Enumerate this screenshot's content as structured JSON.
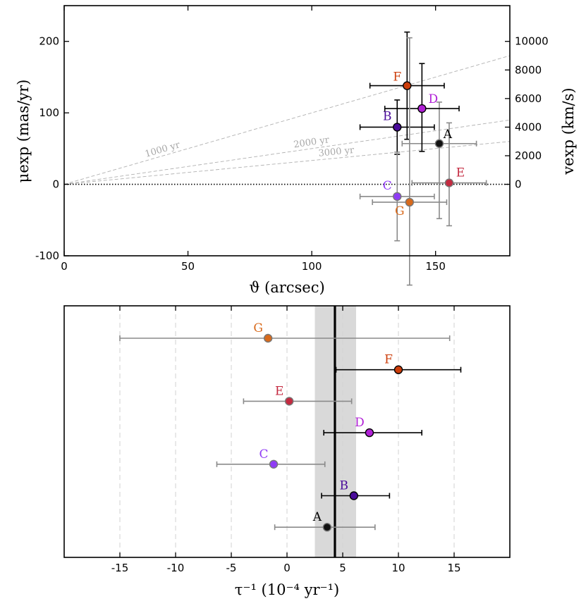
{
  "chart_data": [
    {
      "type": "scatter",
      "panel": "top",
      "xlabel": "ϑ (arcsec)",
      "ylabel": "μexp (mas/yr)",
      "ylabel_right": "vexp (km/s)",
      "xlim": [
        0,
        180
      ],
      "ylim": [
        -100,
        250
      ],
      "xticks": [
        0,
        50,
        100,
        150
      ],
      "yticks": [
        -100,
        0,
        100,
        200
      ],
      "right_axis": {
        "ticks": [
          0,
          2000,
          4000,
          6000,
          8000,
          10000
        ],
        "mas_per_yr_per_kms": 0.02
      },
      "zero_line": 0,
      "age_lines": [
        {
          "label": "1000 yr",
          "years": 1000
        },
        {
          "label": "2000 yr",
          "years": 2000
        },
        {
          "label": "3000 yr",
          "years": 3000
        }
      ],
      "series": [
        {
          "name": "A",
          "theta": 151.5,
          "theta_err_lo": 15,
          "theta_err_hi": 15,
          "mu": 57,
          "mu_err_lo": 105,
          "mu_err_hi": 58,
          "color": "#111111",
          "bar": "#8a8a8a"
        },
        {
          "name": "B",
          "theta": 134.5,
          "theta_err_lo": 15,
          "theta_err_hi": 15,
          "mu": 80,
          "mu_err_lo": 38,
          "mu_err_hi": 38,
          "color": "#4a0c9a",
          "bar": "#000000"
        },
        {
          "name": "C",
          "theta": 134.5,
          "theta_err_lo": 15,
          "theta_err_hi": 15,
          "mu": -17,
          "mu_err_lo": 62,
          "mu_err_hi": 62,
          "color": "#8f3cf5",
          "bar": "#8a8a8a"
        },
        {
          "name": "D",
          "theta": 144.5,
          "theta_err_lo": 15,
          "theta_err_hi": 15,
          "mu": 106,
          "mu_err_lo": 60,
          "mu_err_hi": 63,
          "color": "#b020d6",
          "bar": "#000000"
        },
        {
          "name": "E",
          "theta": 155.5,
          "theta_err_lo": 15,
          "theta_err_hi": 15,
          "mu": 2,
          "mu_err_lo": 60,
          "mu_err_hi": 84,
          "color": "#c42a40",
          "bar": "#8a8a8a"
        },
        {
          "name": "F",
          "theta": 138.5,
          "theta_err_lo": 15,
          "theta_err_hi": 15,
          "mu": 138,
          "mu_err_lo": 75,
          "mu_err_hi": 75,
          "color": "#cc3d0a",
          "bar": "#000000"
        },
        {
          "name": "G",
          "theta": 139.5,
          "theta_err_lo": 15,
          "theta_err_hi": 15,
          "mu": -25,
          "mu_err_lo": 116,
          "mu_err_hi": 230,
          "color": "#d86a1c",
          "bar": "#8a8a8a"
        }
      ]
    },
    {
      "type": "scatter",
      "panel": "bottom",
      "xlabel": "τ⁻¹ (10⁻⁴ yr⁻¹)",
      "xlim": [
        -20,
        20
      ],
      "xticks": [
        -15,
        -10,
        -5,
        0,
        5,
        10,
        15
      ],
      "tick_labels": [
        "-15",
        "-10",
        "-5",
        "0",
        "5",
        "10",
        "15"
      ],
      "mean": 4.3,
      "band": [
        2.5,
        6.2
      ],
      "series": [
        {
          "name": "G",
          "value": -1.7,
          "err_lo": 13.3,
          "err_hi": 16.3,
          "color": "#d86a1c",
          "bar": "#8a8a8a"
        },
        {
          "name": "F",
          "value": 10.0,
          "err_lo": 5.6,
          "err_hi": 5.6,
          "color": "#cc3d0a",
          "bar": "#000000"
        },
        {
          "name": "E",
          "value": 0.2,
          "err_lo": 4.1,
          "err_hi": 5.6,
          "color": "#c42a40",
          "bar": "#8a8a8a"
        },
        {
          "name": "D",
          "value": 7.4,
          "err_lo": 4.1,
          "err_hi": 4.7,
          "color": "#b020d6",
          "bar": "#000000"
        },
        {
          "name": "C",
          "value": -1.2,
          "err_lo": 5.1,
          "err_hi": 4.6,
          "color": "#8f3cf5",
          "bar": "#8a8a8a"
        },
        {
          "name": "B",
          "value": 6.0,
          "err_lo": 2.9,
          "err_hi": 3.2,
          "color": "#4a0c9a",
          "bar": "#000000"
        },
        {
          "name": "A",
          "value": 3.6,
          "err_lo": 4.7,
          "err_hi": 4.3,
          "color": "#111111",
          "bar": "#8a8a8a"
        }
      ]
    }
  ]
}
